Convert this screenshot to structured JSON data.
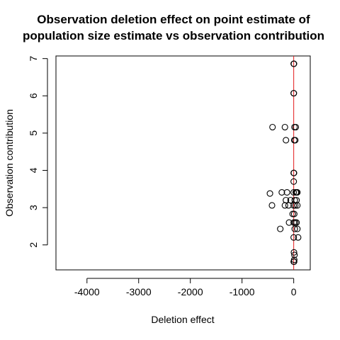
{
  "chart_data": {
    "type": "scatter",
    "title": "Observation deletion effect on point estimate of\npopulation size estimate vs observation contribution",
    "xlabel": "Deletion effect",
    "ylabel": "Observation contribution",
    "xlim": [
      -4600,
      320
    ],
    "ylim": [
      1.33,
      7.07
    ],
    "xticks": [
      -4000,
      -3000,
      -2000,
      -1000,
      0
    ],
    "yticks": [
      2,
      3,
      4,
      5,
      6,
      7
    ],
    "grid": false,
    "reference_line": {
      "orientation": "vertical",
      "x": 0,
      "color": "#e31a1c"
    },
    "point_color": "#000000",
    "x": [
      0,
      5,
      0,
      2,
      -410,
      -170,
      15,
      40,
      -150,
      10,
      30,
      0,
      5,
      0,
      -460,
      -230,
      -130,
      0,
      40,
      55,
      70,
      -150,
      -60,
      20,
      55,
      -170,
      -420,
      -100,
      0,
      30,
      70,
      10,
      -20,
      25,
      -90,
      0,
      30,
      55,
      -260,
      20,
      70,
      0,
      85,
      5,
      15,
      10,
      0,
      8
    ],
    "y": [
      6.86,
      6.86,
      6.07,
      6.07,
      5.16,
      5.16,
      5.16,
      5.16,
      4.81,
      4.81,
      4.81,
      3.93,
      3.93,
      3.7,
      3.38,
      3.41,
      3.41,
      3.41,
      3.41,
      3.41,
      3.41,
      3.2,
      3.2,
      3.2,
      3.2,
      3.06,
      3.06,
      3.06,
      3.06,
      3.06,
      3.06,
      2.83,
      2.83,
      2.6,
      2.6,
      2.6,
      2.6,
      2.6,
      2.43,
      2.43,
      2.43,
      2.2,
      2.2,
      1.8,
      1.73,
      1.6,
      1.55,
      1.55
    ]
  }
}
